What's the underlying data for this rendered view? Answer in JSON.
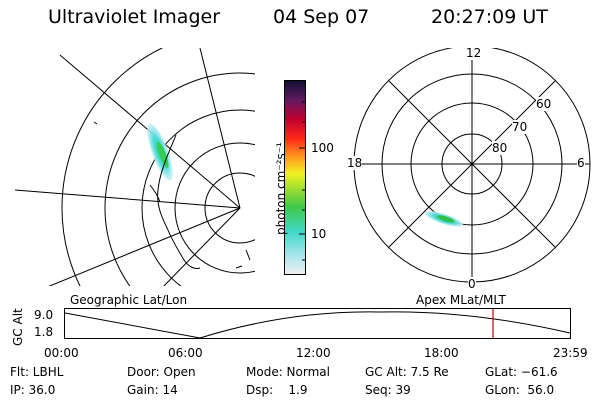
{
  "header": {
    "title": "Ultraviolet Imager",
    "date": "04 Sep 07",
    "time": "20:27:09 UT"
  },
  "colorbar": {
    "label": "photon cm⁻²s⁻¹",
    "ticks": [
      "100",
      "10"
    ]
  },
  "polar": {
    "mlt_labels": {
      "top": "12",
      "left": "18",
      "right": "6",
      "bottom": "0"
    },
    "lat_labels": [
      "60",
      "70",
      "80"
    ]
  },
  "timeline": {
    "left_label": "Geographic Lat/Lon",
    "right_label": "Apex MLat/MLT",
    "axis_label": "GC Alt",
    "y_top": "9.0",
    "y_bottom": "1.8",
    "times": [
      "00:00",
      "06:00",
      "12:00",
      "18:00",
      "23:59"
    ]
  },
  "info": {
    "flt": "Flt: LBHL",
    "ip": "IP: 36.0",
    "door": "Door: Open",
    "gain": "Gain: 14",
    "mode": "Mode: Normal",
    "dsp": "Dsp:    1.9",
    "gcalt": "GC Alt: 7.5 Re",
    "seq": "Seq: 39",
    "glat": "GLat: −61.6",
    "glon": "GLon:  56.0"
  },
  "colors": {
    "marker": "#cc0000"
  }
}
